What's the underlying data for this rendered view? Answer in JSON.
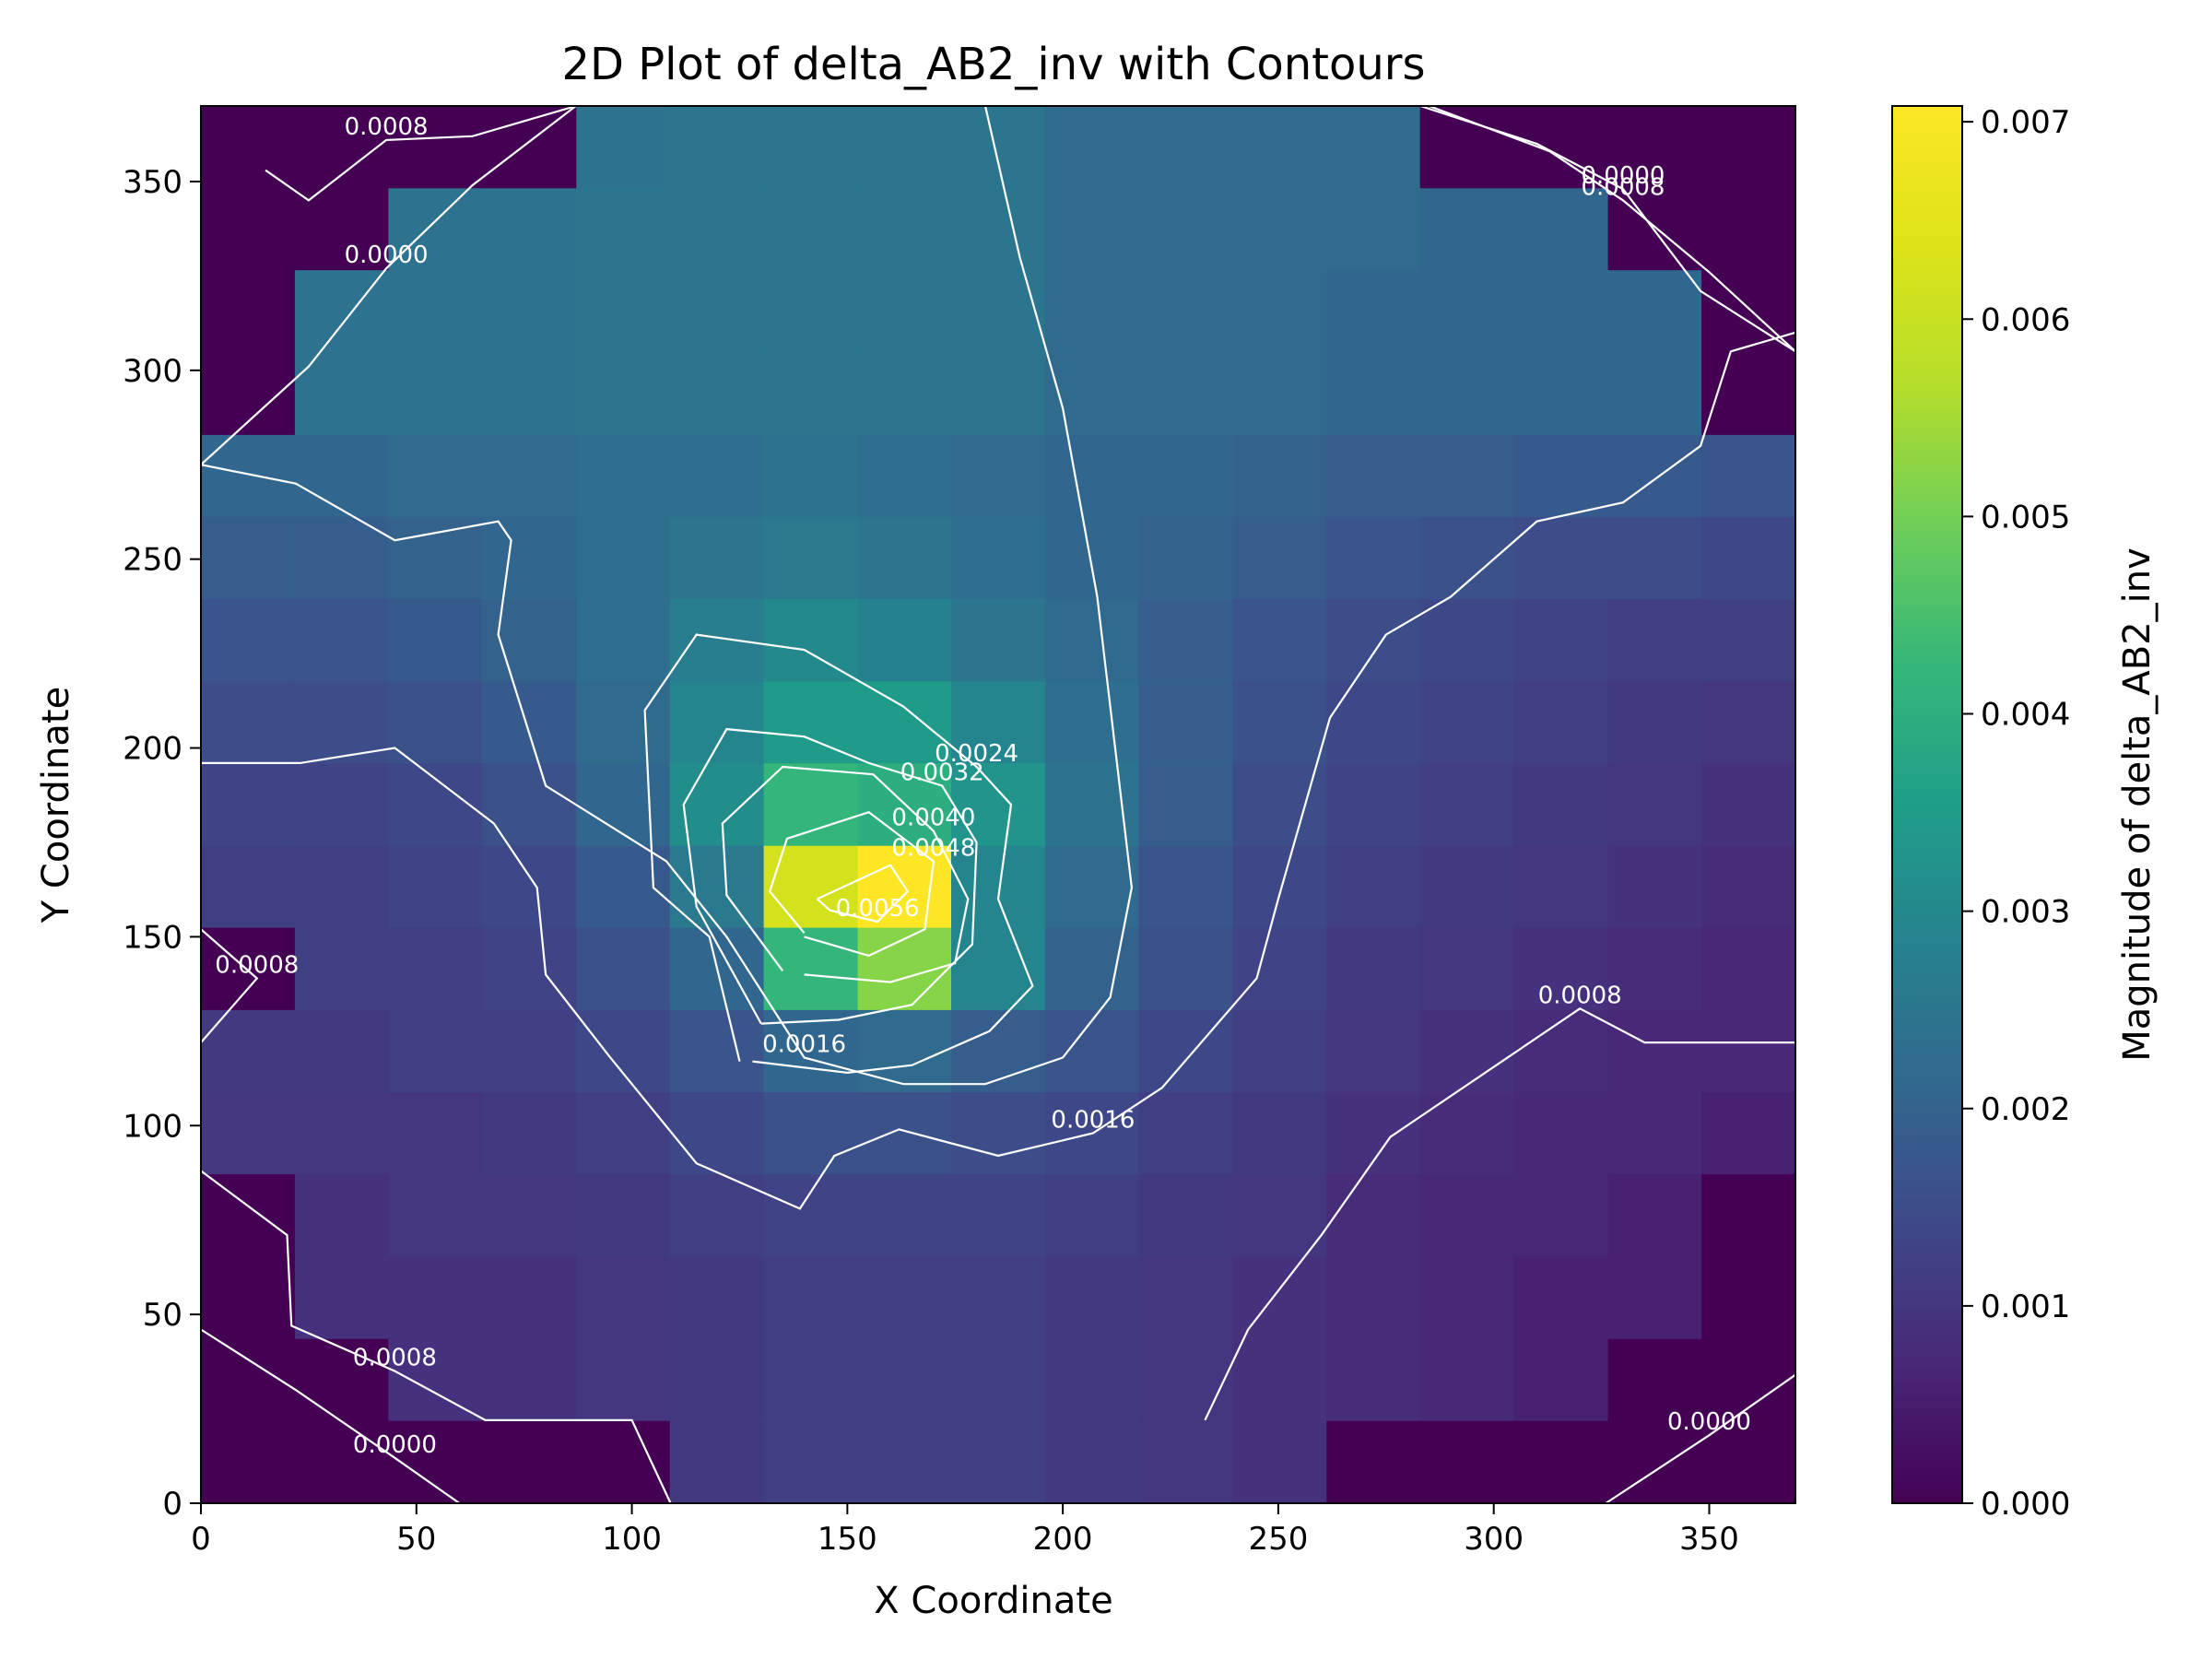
{
  "chart_data": {
    "type": "heatmap",
    "title": "2D Plot of delta_AB2_inv with Contours",
    "xlabel": "X Coordinate",
    "ylabel": "Y Coordinate",
    "colorbar_label": "Magnitude of delta_AB2_inv",
    "colormap": "viridis",
    "xlim": [
      0,
      370
    ],
    "ylim": [
      0,
      370
    ],
    "x_ticks": [
      "0",
      "50",
      "100",
      "150",
      "200",
      "250",
      "300",
      "350"
    ],
    "y_ticks": [
      "0",
      "50",
      "100",
      "150",
      "200",
      "250",
      "300",
      "350"
    ],
    "colorbar_range": [
      0,
      0.00708
    ],
    "colorbar_ticks": [
      "0.000",
      "0.001",
      "0.002",
      "0.003",
      "0.004",
      "0.005",
      "0.006",
      "0.007"
    ],
    "grid_x_edges": [
      0,
      21.8,
      43.5,
      65.3,
      87.1,
      108.8,
      130.6,
      152.4,
      174.1,
      195.9,
      217.6,
      239.4,
      261.2,
      282.9,
      304.7,
      326.5,
      348.2,
      370
    ],
    "grid_y_edges": [
      0,
      21.8,
      43.5,
      65.3,
      87.1,
      108.8,
      130.6,
      152.4,
      174.1,
      195.9,
      217.6,
      239.4,
      261.2,
      282.9,
      304.7,
      326.5,
      348.2,
      370
    ],
    "values_top_to_bottom": [
      [
        0.0,
        0.0,
        0.0,
        0.0,
        0.0024,
        0.0025,
        0.0025,
        0.0025,
        0.0025,
        0.0022,
        0.0022,
        0.0022,
        0.0022,
        0.0,
        0.0,
        0.0,
        0.0
      ],
      [
        0.0,
        0.0,
        0.0024,
        0.0024,
        0.0025,
        0.0025,
        0.0025,
        0.0025,
        0.0025,
        0.0022,
        0.0022,
        0.0022,
        0.0022,
        0.0021,
        0.0021,
        0.0,
        0.0
      ],
      [
        0.0,
        0.0024,
        0.0024,
        0.0024,
        0.0025,
        0.0025,
        0.0025,
        0.0025,
        0.0025,
        0.0022,
        0.0022,
        0.0022,
        0.0021,
        0.0021,
        0.0021,
        0.0021,
        0.0
      ],
      [
        0.0,
        0.0024,
        0.0024,
        0.0024,
        0.0025,
        0.0025,
        0.0025,
        0.0025,
        0.0025,
        0.0022,
        0.0022,
        0.0022,
        0.0021,
        0.0021,
        0.0021,
        0.0021,
        0.0
      ],
      [
        0.0021,
        0.0021,
        0.0022,
        0.0022,
        0.0023,
        0.0023,
        0.0024,
        0.0023,
        0.0022,
        0.0021,
        0.0021,
        0.002,
        0.0019,
        0.0019,
        0.0018,
        0.0018,
        0.0017
      ],
      [
        0.0019,
        0.0019,
        0.002,
        0.0021,
        0.0023,
        0.0025,
        0.0026,
        0.0025,
        0.0023,
        0.0021,
        0.002,
        0.0019,
        0.0017,
        0.0016,
        0.0015,
        0.0015,
        0.0014
      ],
      [
        0.0017,
        0.0017,
        0.0018,
        0.002,
        0.0023,
        0.0027,
        0.003,
        0.0028,
        0.0025,
        0.0022,
        0.0019,
        0.0017,
        0.0015,
        0.0014,
        0.0013,
        0.0012,
        0.0012
      ],
      [
        0.0015,
        0.0015,
        0.0016,
        0.0018,
        0.0022,
        0.0029,
        0.0035,
        0.0035,
        0.0029,
        0.0023,
        0.0019,
        0.0016,
        0.0014,
        0.0013,
        0.0012,
        0.0011,
        0.001
      ],
      [
        0.0013,
        0.0013,
        0.0014,
        0.0016,
        0.0021,
        0.0031,
        0.0042,
        0.004,
        0.0033,
        0.0024,
        0.0019,
        0.0015,
        0.0013,
        0.0012,
        0.0011,
        0.001,
        0.0009
      ],
      [
        0.0012,
        0.0012,
        0.0013,
        0.0014,
        0.0018,
        0.0026,
        0.0062,
        0.0071,
        0.0029,
        0.0022,
        0.0017,
        0.0014,
        0.0012,
        0.0011,
        0.001,
        0.0009,
        0.0008
      ],
      [
        0.0,
        0.0012,
        0.0012,
        0.0013,
        0.0016,
        0.0021,
        0.0042,
        0.0052,
        0.0029,
        0.002,
        0.0016,
        0.0013,
        0.0011,
        0.001,
        0.0009,
        0.0008,
        0.0007
      ],
      [
        0.0011,
        0.0011,
        0.0012,
        0.0012,
        0.0014,
        0.0017,
        0.0021,
        0.0022,
        0.0019,
        0.0017,
        0.0014,
        0.0012,
        0.001,
        0.0009,
        0.0008,
        0.0007,
        0.0007
      ],
      [
        0.001,
        0.001,
        0.001,
        0.0011,
        0.0012,
        0.0014,
        0.0016,
        0.0016,
        0.0015,
        0.0014,
        0.0012,
        0.0011,
        0.0009,
        0.0008,
        0.0007,
        0.0007,
        0.0006
      ],
      [
        0.0,
        0.0009,
        0.001,
        0.001,
        0.0011,
        0.0012,
        0.0013,
        0.0013,
        0.0013,
        0.0012,
        0.0011,
        0.001,
        0.0008,
        0.0007,
        0.0007,
        0.0006,
        0.0
      ],
      [
        0.0,
        0.0009,
        0.0009,
        0.0009,
        0.001,
        0.0011,
        0.0012,
        0.0012,
        0.0012,
        0.0011,
        0.001,
        0.0009,
        0.0008,
        0.0007,
        0.0006,
        0.0006,
        0.0
      ],
      [
        0.0,
        0.0,
        0.0009,
        0.0009,
        0.001,
        0.0011,
        0.0012,
        0.0012,
        0.0012,
        0.0011,
        0.001,
        0.0009,
        0.0008,
        0.0007,
        0.0006,
        0.0,
        0.0
      ],
      [
        0.0,
        0.0,
        0.0,
        0.0,
        0.0,
        0.0011,
        0.0012,
        0.0012,
        0.0012,
        0.0011,
        0.001,
        0.0009,
        0.0,
        0.0,
        0.0,
        0.0,
        0.0
      ]
    ],
    "contour_levels": [
      0.0,
      0.0008,
      0.0016,
      0.0024,
      0.0032,
      0.004,
      0.0048,
      0.0056
    ],
    "contours": [
      {
        "label": "0.0000",
        "points": [
          [
            0,
            275
          ],
          [
            25,
            301
          ],
          [
            43,
            327
          ],
          [
            63,
            349
          ],
          [
            87,
            370
          ]
        ]
      },
      {
        "label": "0.0000",
        "points": [
          [
            283,
            370
          ],
          [
            310,
            360
          ],
          [
            330,
            348
          ],
          [
            348,
            321
          ],
          [
            370,
            305
          ]
        ]
      },
      {
        "label": "0.0000",
        "points": [
          [
            0,
            46
          ],
          [
            22,
            30
          ],
          [
            45,
            12
          ],
          [
            60,
            0
          ]
        ]
      },
      {
        "label": "0.0000",
        "points": [
          [
            326,
            0
          ],
          [
            350,
            18
          ],
          [
            370,
            34
          ]
        ]
      },
      {
        "label": "0.0008",
        "points": [
          [
            0,
            88
          ],
          [
            20,
            71
          ],
          [
            21,
            47
          ],
          [
            45,
            35
          ],
          [
            66,
            22
          ],
          [
            100,
            22
          ],
          [
            109,
            0
          ]
        ]
      },
      {
        "label": "0.0008",
        "points": [
          [
            233,
            22
          ],
          [
            243,
            46
          ],
          [
            260,
            71
          ],
          [
            276,
            97
          ],
          [
            320,
            131
          ],
          [
            335,
            122
          ],
          [
            348,
            122
          ],
          [
            370,
            122
          ]
        ]
      },
      {
        "label": "0.0008",
        "points": [
          [
            0,
            152
          ],
          [
            13,
            139
          ],
          [
            0,
            122
          ]
        ]
      },
      {
        "label": "0.0008",
        "points": [
          [
            15,
            353
          ],
          [
            25,
            345
          ],
          [
            43,
            361
          ],
          [
            63,
            362
          ],
          [
            87,
            370
          ]
        ]
      },
      {
        "label": "0.0008",
        "points": [
          [
            285,
            370
          ],
          [
            313,
            358
          ],
          [
            330,
            345
          ],
          [
            350,
            326
          ],
          [
            370,
            305
          ]
        ]
      },
      {
        "label": "0.0016",
        "points": [
          [
            0,
            196
          ],
          [
            23,
            196
          ],
          [
            45,
            200
          ],
          [
            68,
            180
          ],
          [
            78,
            163
          ],
          [
            80,
            140
          ],
          [
            95,
            118
          ],
          [
            115,
            90
          ],
          [
            139,
            78
          ],
          [
            147,
            92
          ],
          [
            162,
            99
          ],
          [
            185,
            92
          ],
          [
            207,
            98
          ],
          [
            223,
            110
          ],
          [
            245,
            139
          ],
          [
            250,
            160
          ],
          [
            262,
            208
          ],
          [
            275,
            230
          ],
          [
            290,
            240
          ],
          [
            310,
            260
          ],
          [
            330,
            265
          ],
          [
            348,
            280
          ],
          [
            355,
            305
          ],
          [
            370,
            310
          ]
        ]
      },
      {
        "label": "0.0016",
        "points": [
          [
            0,
            275
          ],
          [
            22,
            270
          ],
          [
            45,
            255
          ],
          [
            69,
            260
          ],
          [
            72,
            255
          ],
          [
            69,
            230
          ],
          [
            80,
            190
          ],
          [
            108,
            170
          ],
          [
            122,
            150
          ],
          [
            140,
            118
          ],
          [
            163,
            111
          ],
          [
            182,
            111
          ],
          [
            200,
            118
          ],
          [
            211,
            134
          ],
          [
            216,
            163
          ],
          [
            208,
            240
          ],
          [
            200,
            290
          ],
          [
            190,
            330
          ],
          [
            182,
            370
          ]
        ]
      },
      {
        "label": "0.0024",
        "points": [
          [
            125,
            117
          ],
          [
            118,
            150
          ],
          [
            105,
            163
          ],
          [
            103,
            210
          ],
          [
            115,
            230
          ],
          [
            140,
            226
          ],
          [
            163,
            211
          ],
          [
            180,
            195
          ],
          [
            188,
            185
          ],
          [
            185,
            160
          ],
          [
            193,
            137
          ],
          [
            183,
            125
          ],
          [
            165,
            116
          ],
          [
            150,
            114
          ],
          [
            128,
            117
          ]
        ]
      },
      {
        "label": "0.0032",
        "points": [
          [
            130,
            127
          ],
          [
            115,
            158
          ],
          [
            112,
            185
          ],
          [
            122,
            205
          ],
          [
            140,
            203
          ],
          [
            155,
            196
          ],
          [
            172,
            190
          ],
          [
            180,
            175
          ],
          [
            179,
            148
          ],
          [
            165,
            132
          ],
          [
            148,
            128
          ],
          [
            130,
            127
          ]
        ]
      },
      {
        "label": "0.0040",
        "points": [
          [
            135,
            141
          ],
          [
            122,
            161
          ],
          [
            121,
            180
          ],
          [
            135,
            195
          ],
          [
            156,
            193
          ],
          [
            170,
            178
          ],
          [
            178,
            160
          ],
          [
            175,
            143
          ],
          [
            160,
            138
          ],
          [
            140,
            140
          ]
        ]
      },
      {
        "label": "0.0048",
        "points": [
          [
            140,
            151
          ],
          [
            132,
            162
          ],
          [
            136,
            176
          ],
          [
            155,
            183
          ],
          [
            170,
            170
          ],
          [
            168,
            152
          ],
          [
            155,
            145
          ],
          [
            140,
            150
          ]
        ]
      },
      {
        "label": "0.0056",
        "points": [
          [
            143,
            160
          ],
          [
            160,
            169
          ],
          [
            164,
            162
          ],
          [
            157,
            154
          ],
          [
            146,
            157
          ],
          [
            143,
            160
          ]
        ]
      }
    ]
  }
}
